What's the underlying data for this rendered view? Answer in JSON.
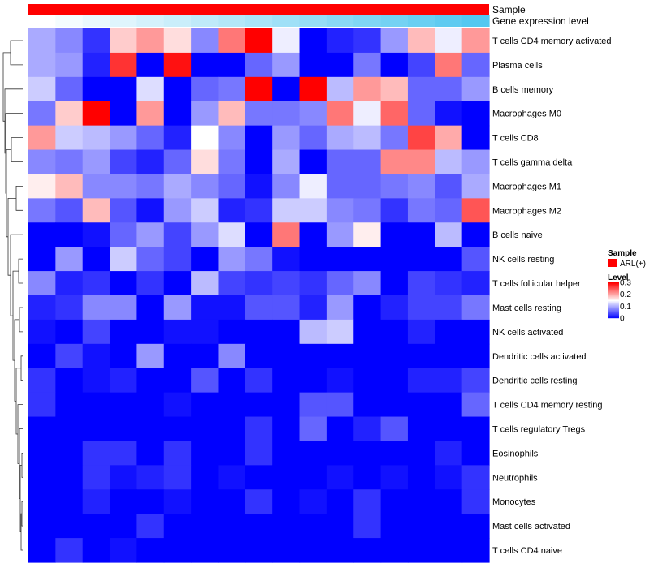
{
  "chart_data": {
    "type": "heatmap",
    "rows": [
      "T cells CD4 memory activated",
      "Plasma cells",
      "B cells memory",
      "Macrophages M0",
      "T cells CD8",
      "T cells gamma delta",
      "Macrophages M1",
      "Macrophages M2",
      "B cells naive",
      "NK cells resting",
      "T cells follicular helper",
      "Mast cells resting",
      "NK cells activated",
      "Dendritic cells activated",
      "Dendritic cells resting",
      "T cells CD4 memory resting",
      "T cells regulatory  Tregs",
      "Eosinophils",
      "Neutrophils",
      "Monocytes",
      "Mast cells activated",
      "T cells CD4 naive"
    ],
    "n_columns": 17,
    "values": [
      [
        0.1,
        0.08,
        0.03,
        0.18,
        0.21,
        0.17,
        0.08,
        0.23,
        0.3,
        0.14,
        0.0,
        0.02,
        0.03,
        0.09,
        0.19,
        0.14,
        0.21
      ],
      [
        0.1,
        0.09,
        0.02,
        0.27,
        0.0,
        0.29,
        0.0,
        0.0,
        0.06,
        0.09,
        0.0,
        0.0,
        0.07,
        0.0,
        0.04,
        0.23,
        0.06
      ],
      [
        0.12,
        0.06,
        0.0,
        0.0,
        0.13,
        0.0,
        0.06,
        0.07,
        0.3,
        0.0,
        0.3,
        0.11,
        0.21,
        0.19,
        0.06,
        0.06,
        0.09
      ],
      [
        0.07,
        0.18,
        0.3,
        0.0,
        0.21,
        0.0,
        0.09,
        0.19,
        0.07,
        0.07,
        0.08,
        0.23,
        0.14,
        0.24,
        0.06,
        0.01,
        0.0
      ],
      [
        0.21,
        0.12,
        0.11,
        0.09,
        0.06,
        0.02,
        0.15,
        0.08,
        0.0,
        0.09,
        0.06,
        0.1,
        0.11,
        0.07,
        0.26,
        0.2,
        0.0
      ],
      [
        0.08,
        0.07,
        0.09,
        0.04,
        0.02,
        0.06,
        0.17,
        0.07,
        0.0,
        0.1,
        0.0,
        0.06,
        0.06,
        0.22,
        0.22,
        0.11,
        0.09
      ],
      [
        0.16,
        0.19,
        0.08,
        0.08,
        0.07,
        0.1,
        0.08,
        0.06,
        0.01,
        0.08,
        0.14,
        0.06,
        0.06,
        0.07,
        0.08,
        0.05,
        0.1
      ],
      [
        0.07,
        0.05,
        0.19,
        0.05,
        0.01,
        0.09,
        0.12,
        0.02,
        0.03,
        0.12,
        0.12,
        0.08,
        0.07,
        0.03,
        0.07,
        0.06,
        0.25
      ],
      [
        0.0,
        0.0,
        0.01,
        0.06,
        0.09,
        0.04,
        0.09,
        0.13,
        0.0,
        0.23,
        0.0,
        0.09,
        0.16,
        0.0,
        0.0,
        0.11,
        0.0
      ],
      [
        0.0,
        0.09,
        0.0,
        0.12,
        0.06,
        0.04,
        0.0,
        0.09,
        0.07,
        0.01,
        0.0,
        0.0,
        0.0,
        0.0,
        0.0,
        0.0,
        0.05
      ],
      [
        0.08,
        0.02,
        0.03,
        0.0,
        0.03,
        0.0,
        0.11,
        0.04,
        0.03,
        0.04,
        0.03,
        0.06,
        0.08,
        0.0,
        0.04,
        0.03,
        0.02
      ],
      [
        0.02,
        0.03,
        0.08,
        0.08,
        0.0,
        0.09,
        0.01,
        0.01,
        0.05,
        0.05,
        0.02,
        0.09,
        0.0,
        0.02,
        0.04,
        0.04,
        0.07
      ],
      [
        0.01,
        0.0,
        0.04,
        0.0,
        0.0,
        0.01,
        0.01,
        0.0,
        0.0,
        0.0,
        0.11,
        0.12,
        0.0,
        0.0,
        0.02,
        0.0,
        0.0
      ],
      [
        0.0,
        0.04,
        0.01,
        0.0,
        0.09,
        0.0,
        0.0,
        0.08,
        0.0,
        0.0,
        0.0,
        0.0,
        0.0,
        0.0,
        0.0,
        0.0,
        0.0
      ],
      [
        0.03,
        0.0,
        0.01,
        0.02,
        0.0,
        0.0,
        0.05,
        0.0,
        0.03,
        0.0,
        0.0,
        0.01,
        0.0,
        0.0,
        0.02,
        0.02,
        0.04
      ],
      [
        0.03,
        0.0,
        0.0,
        0.0,
        0.0,
        0.01,
        0.0,
        0.0,
        0.0,
        0.0,
        0.05,
        0.05,
        0.0,
        0.0,
        0.0,
        0.0,
        0.06
      ],
      [
        0.0,
        0.0,
        0.0,
        0.0,
        0.0,
        0.0,
        0.0,
        0.0,
        0.03,
        0.0,
        0.06,
        0.0,
        0.02,
        0.05,
        0.0,
        0.0,
        0.0
      ],
      [
        0.0,
        0.0,
        0.03,
        0.03,
        0.0,
        0.03,
        0.0,
        0.0,
        0.03,
        0.0,
        0.0,
        0.0,
        0.0,
        0.0,
        0.0,
        0.02,
        0.0
      ],
      [
        0.0,
        0.0,
        0.03,
        0.01,
        0.02,
        0.03,
        0.0,
        0.01,
        0.0,
        0.0,
        0.0,
        0.01,
        0.0,
        0.01,
        0.0,
        0.01,
        0.03
      ],
      [
        0.0,
        0.0,
        0.02,
        0.0,
        0.0,
        0.01,
        0.0,
        0.0,
        0.03,
        0.0,
        0.01,
        0.0,
        0.03,
        0.0,
        0.0,
        0.0,
        0.03
      ],
      [
        0.0,
        0.0,
        0.0,
        0.0,
        0.03,
        0.0,
        0.0,
        0.0,
        0.0,
        0.0,
        0.0,
        0.0,
        0.03,
        0.0,
        0.0,
        0.0,
        0.0
      ],
      [
        0.0,
        0.03,
        0.0,
        0.01,
        0.0,
        0.0,
        0.0,
        0.0,
        0.0,
        0.0,
        0.0,
        0.0,
        0.0,
        0.0,
        0.0,
        0.0,
        0.0
      ]
    ],
    "color_scale": {
      "min": 0,
      "mid": 0.15,
      "max": 0.3,
      "low_color": "#0000ff",
      "mid_color": "#ffffff",
      "high_color": "#ff0000"
    },
    "annotations": [
      {
        "label": "Sample",
        "type": "constant",
        "color": "#ff0000"
      },
      {
        "label": "Gene expression level",
        "type": "gradient",
        "start_color": "#ffffff",
        "end_color": "#54c8f0"
      }
    ],
    "legend": {
      "sample_title": "Sample",
      "sample_item": "ARL(+)",
      "sample_color": "#ff0000",
      "level_title": "Level",
      "level_ticks": [
        "0.3",
        "0.2",
        "0.1",
        "0"
      ],
      "placement": "right"
    },
    "row_dendrogram": true
  }
}
